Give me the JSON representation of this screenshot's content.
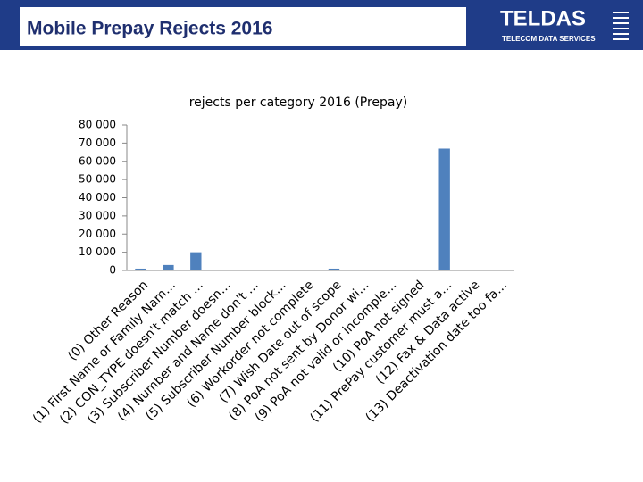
{
  "header": {
    "title": "Mobile Prepay Rejects 2016",
    "logo": "TELDAS",
    "logo_subtitle": "TELECOM DATA SERVICES"
  },
  "chart_data": {
    "type": "bar",
    "title": "rejects per category 2016 (Prepay)",
    "categories": [
      "(0) Other Reason",
      "(1) First Name or Family Nam…",
      "(2) CON_TYPE doesn't match …",
      "(3) Subscriber Number doesn…",
      "(4) Number and Name don't …",
      "(5) Subscriber Number block…",
      "(6) Workorder not complete",
      "(7) Wish Date out of scope",
      "(8) PoA not sent by Donor wi…",
      "(9) PoA not valid or incomple…",
      "(10) PoA not signed",
      "(11) PrePay customer must a…",
      "(12) Fax & Data active",
      "(13) Deactivation date too fa…"
    ],
    "values": [
      1000,
      3000,
      10000,
      0,
      0,
      0,
      0,
      1000,
      0,
      0,
      0,
      67000,
      0,
      0
    ],
    "color": "#4f81bd",
    "ylim": [
      0,
      80000
    ],
    "yticks": [
      0,
      {
        "value": 10000,
        "label": "10 000"
      },
      {
        "value": 20000,
        "label": "20 000"
      },
      {
        "value": 30000,
        "label": "30 000"
      },
      {
        "value": 40000,
        "label": "40 000"
      },
      {
        "value": 50000,
        "label": "50 000"
      },
      {
        "value": 60000,
        "label": "60 000"
      },
      {
        "value": 70000,
        "label": "70 000"
      },
      {
        "value": 80000,
        "label": "80 000"
      }
    ],
    "grid": false
  }
}
